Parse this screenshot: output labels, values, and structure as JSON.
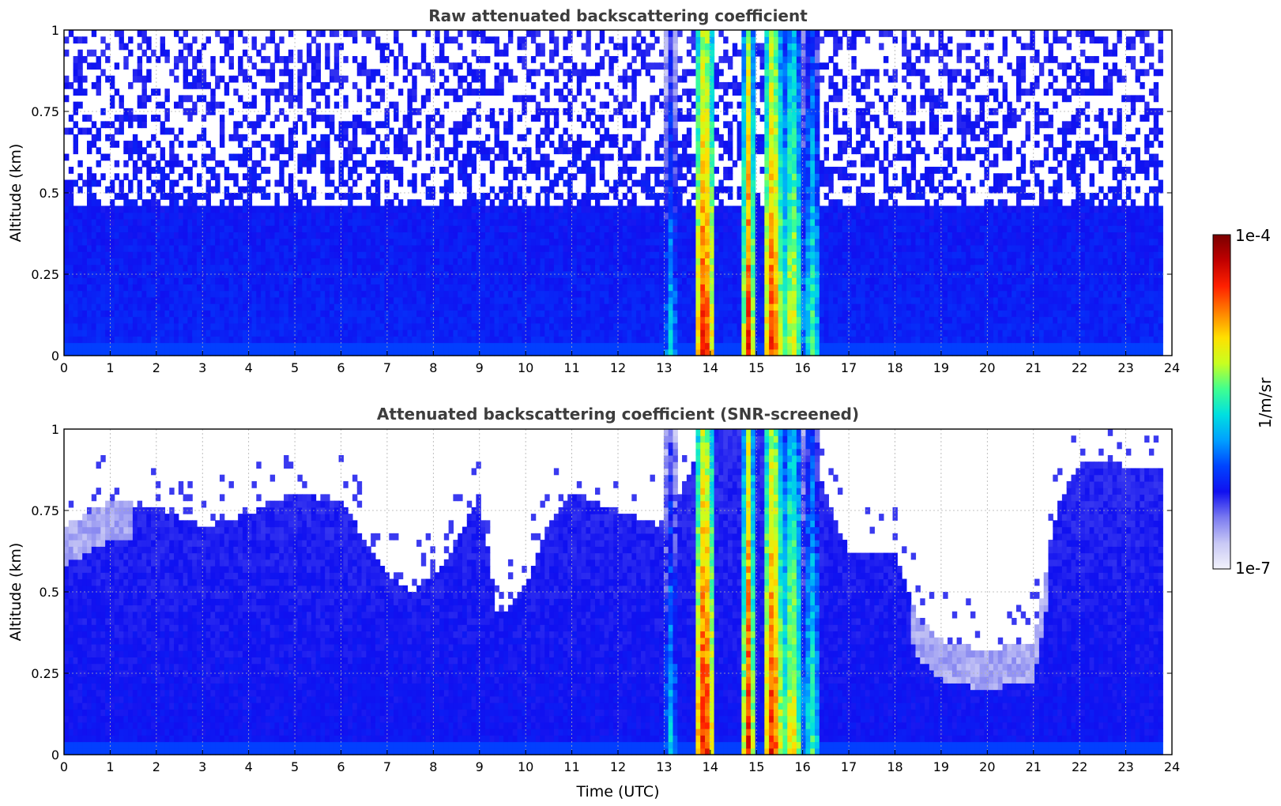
{
  "chart_data": [
    {
      "type": "heatmap",
      "title": "Raw attenuated backscattering coefficient",
      "xlabel": "",
      "ylabel": "Altitude (km)",
      "xlim": [
        0,
        24
      ],
      "ylim": [
        0,
        1
      ],
      "xticks": [
        "0",
        "1",
        "2",
        "3",
        "4",
        "5",
        "6",
        "7",
        "8",
        "9",
        "10",
        "11",
        "12",
        "13",
        "14",
        "15",
        "16",
        "17",
        "18",
        "19",
        "20",
        "21",
        "22",
        "23",
        "24"
      ],
      "yticks": [
        "0",
        "0.25",
        "0.5",
        "0.75",
        "1"
      ],
      "grid": true,
      "data_extent_time": [
        0,
        23.8
      ],
      "background_level": "~1e-6 (blue), speckled noise above ~0.4 km",
      "ground_layer_altitude_km": [
        0,
        0.05
      ],
      "dense_layers": [
        {
          "start": 13.0,
          "end": 13.3,
          "intensity": 0.45
        },
        {
          "start": 13.65,
          "end": 14.1,
          "intensity": 0.9
        },
        {
          "start": 14.7,
          "end": 14.95,
          "intensity": 0.85
        },
        {
          "start": 15.15,
          "end": 15.55,
          "intensity": 0.88
        },
        {
          "start": 15.55,
          "end": 16.0,
          "intensity": 0.7
        },
        {
          "start": 16.0,
          "end": 16.4,
          "intensity": 0.55
        }
      ]
    },
    {
      "type": "heatmap",
      "title": "Attenuated backscattering coefficient (SNR-screened)",
      "xlabel": "Time (UTC)",
      "ylabel": "Altitude (km)",
      "xlim": [
        0,
        24
      ],
      "ylim": [
        0,
        1
      ],
      "xticks": [
        "0",
        "1",
        "2",
        "3",
        "4",
        "5",
        "6",
        "7",
        "8",
        "9",
        "10",
        "11",
        "12",
        "13",
        "14",
        "15",
        "16",
        "17",
        "18",
        "19",
        "20",
        "21",
        "22",
        "23",
        "24"
      ],
      "yticks": [
        "0",
        "0.25",
        "0.5",
        "0.75",
        "1"
      ],
      "grid": true,
      "data_extent_time": [
        0,
        23.8
      ],
      "valid_top_profile": [
        {
          "t": 0,
          "h": 0.7
        },
        {
          "t": 1,
          "h": 0.78
        },
        {
          "t": 2,
          "h": 0.76
        },
        {
          "t": 3,
          "h": 0.7
        },
        {
          "t": 4,
          "h": 0.74
        },
        {
          "t": 5,
          "h": 0.8
        },
        {
          "t": 6,
          "h": 0.78
        },
        {
          "t": 7,
          "h": 0.55
        },
        {
          "t": 7.5,
          "h": 0.5
        },
        {
          "t": 8,
          "h": 0.55
        },
        {
          "t": 8.5,
          "h": 0.65
        },
        {
          "t": 9,
          "h": 0.8
        },
        {
          "t": 9.4,
          "h": 0.42
        },
        {
          "t": 10,
          "h": 0.52
        },
        {
          "t": 10.5,
          "h": 0.72
        },
        {
          "t": 11,
          "h": 0.8
        },
        {
          "t": 12,
          "h": 0.75
        },
        {
          "t": 13,
          "h": 0.7
        },
        {
          "t": 14,
          "h": 1.0
        },
        {
          "t": 16,
          "h": 1.0
        },
        {
          "t": 16.5,
          "h": 0.8
        },
        {
          "t": 17,
          "h": 0.62
        },
        {
          "t": 18,
          "h": 0.62
        },
        {
          "t": 18.5,
          "h": 0.42
        },
        {
          "t": 19,
          "h": 0.35
        },
        {
          "t": 20,
          "h": 0.32
        },
        {
          "t": 21,
          "h": 0.35
        },
        {
          "t": 21.5,
          "h": 0.75
        },
        {
          "t": 22,
          "h": 0.9
        },
        {
          "t": 23.8,
          "h": 0.88
        }
      ],
      "dense_layers": [
        {
          "start": 13.0,
          "end": 13.3,
          "intensity": 0.45
        },
        {
          "start": 13.65,
          "end": 14.1,
          "intensity": 0.92
        },
        {
          "start": 14.7,
          "end": 14.95,
          "intensity": 0.87
        },
        {
          "start": 15.15,
          "end": 15.55,
          "intensity": 0.9
        },
        {
          "start": 15.55,
          "end": 16.0,
          "intensity": 0.72
        },
        {
          "start": 16.0,
          "end": 16.4,
          "intensity": 0.55
        }
      ]
    }
  ],
  "colorbar": {
    "label": "1/m/sr",
    "max_label": "1e-4",
    "min_label": "1e-7",
    "scale": "log",
    "colormap": [
      "#f2f2fb",
      "#c8c8f5",
      "#7a7af0",
      "#1010f0",
      "#0044ff",
      "#00a0ff",
      "#00e0e0",
      "#40ff90",
      "#c8ff20",
      "#ffe000",
      "#ff8000",
      "#ff2000",
      "#c00000",
      "#7a0000"
    ]
  }
}
